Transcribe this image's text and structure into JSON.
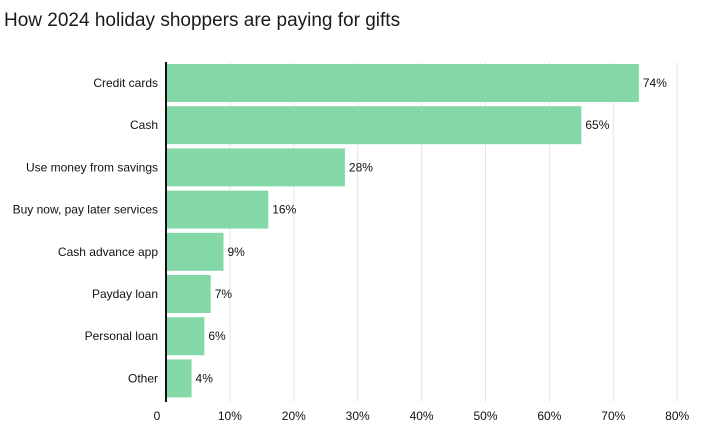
{
  "chart_data": {
    "type": "bar",
    "orientation": "horizontal",
    "title": "How 2024 holiday shoppers are paying for gifts",
    "categories": [
      "Credit cards",
      "Cash",
      "Use money from savings",
      "Buy now, pay later services",
      "Cash advance app",
      "Payday loan",
      "Personal loan",
      "Other"
    ],
    "values": [
      74,
      65,
      28,
      16,
      9,
      7,
      6,
      4
    ],
    "value_labels": [
      "74%",
      "65%",
      "28%",
      "16%",
      "9%",
      "7%",
      "6%",
      "4%"
    ],
    "xlim": [
      0,
      80
    ],
    "x_ticks": [
      0,
      10,
      20,
      30,
      40,
      50,
      60,
      70,
      80
    ],
    "x_tick_labels": [
      "0",
      "10%",
      "20%",
      "30%",
      "40%",
      "50%",
      "60%",
      "70%",
      "80%"
    ],
    "grid": "vertical",
    "bar_color": "#84d8a8",
    "grid_color": "#e6e6e6",
    "axis_color": "#111111"
  }
}
